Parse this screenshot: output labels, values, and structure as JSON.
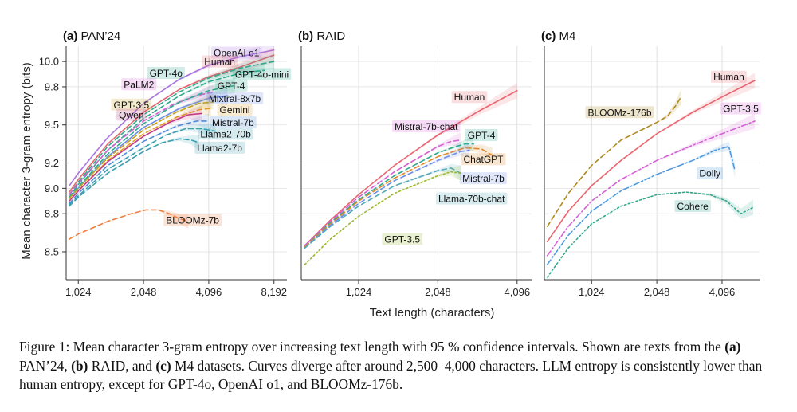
{
  "figure": {
    "ylabel": "Mean character 3-gram entropy (bits)",
    "xlabel": "Text length (characters)"
  },
  "chart_data": [
    {
      "type": "line",
      "panel_label": "(a)",
      "title": "PAN’24",
      "x_scale": "log2",
      "xlim": [
        900,
        9400
      ],
      "ylim": [
        8.28,
        10.12
      ],
      "x_ticks": [
        1024,
        2048,
        4096,
        8192
      ],
      "x_tick_labels": [
        "1,024",
        "2,048",
        "4,096",
        "8,192"
      ],
      "y_ticks": [
        8.5,
        8.8,
        9.0,
        9.2,
        9.5,
        9.8,
        10.0
      ],
      "y_tick_labels": [
        "8.5",
        "8.8",
        "9.0",
        "9.2",
        "9.5",
        "9.8",
        "10.0"
      ],
      "series": [
        {
          "name": "OpenAI  o1",
          "color": "#a974e0",
          "dash": "solid",
          "x": [
            930,
            1024,
            1400,
            2048,
            3000,
            4096,
            5800,
            8192
          ],
          "y": [
            9.02,
            9.12,
            9.4,
            9.67,
            9.86,
            9.97,
            10.04,
            10.09
          ],
          "label_x": 5500,
          "label_y": 10.07
        },
        {
          "name": "Human",
          "color": "#e8656f",
          "dash": "solid",
          "x": [
            930,
            1024,
            1400,
            2048,
            3000,
            4096,
            5800,
            8192
          ],
          "y": [
            8.97,
            9.07,
            9.35,
            9.6,
            9.78,
            9.88,
            9.96,
            10.05
          ],
          "label_x": 4600,
          "label_y": 10.0
        },
        {
          "name": "GPT-4o",
          "color": "#2fa98c",
          "dash": "dash",
          "x": [
            930,
            1024,
            1400,
            2048,
            3000,
            4096,
            5800,
            8192
          ],
          "y": [
            8.95,
            9.05,
            9.33,
            9.58,
            9.76,
            9.87,
            9.95,
            10.0
          ],
          "label_x": 2600,
          "label_y": 9.91
        },
        {
          "name": "GPT-4o-mini",
          "color": "#2fa98c",
          "dash": "dash",
          "x": [
            930,
            1024,
            1400,
            2048,
            3000,
            4096,
            5800,
            7400
          ],
          "y": [
            8.93,
            9.03,
            9.3,
            9.55,
            9.73,
            9.84,
            9.91,
            9.93
          ],
          "label_x": 7200,
          "label_y": 9.9
        },
        {
          "name": "PaLM2",
          "color": "#d55fd6",
          "dash": "dash",
          "x": [
            930,
            1024,
            1400,
            2048,
            2800,
            3600,
            4300
          ],
          "y": [
            8.95,
            9.04,
            9.3,
            9.53,
            9.66,
            9.73,
            9.76
          ],
          "label_x": 1950,
          "label_y": 9.82
        },
        {
          "name": "GPT-4",
          "color": "#2fa98c",
          "dash": "dash",
          "x": [
            930,
            1024,
            1400,
            2048,
            3000,
            4096,
            5400
          ],
          "y": [
            8.92,
            9.01,
            9.27,
            9.51,
            9.68,
            9.77,
            9.81
          ],
          "label_x": 5200,
          "label_y": 9.81
        },
        {
          "name": "Mixtral-8x7b",
          "color": "#6c8ee8",
          "dash": "solid",
          "x": [
            930,
            1024,
            1400,
            2048,
            3000,
            4096,
            5000
          ],
          "y": [
            8.92,
            9.0,
            9.25,
            9.48,
            9.63,
            9.71,
            9.73
          ],
          "label_x": 5400,
          "label_y": 9.71
        },
        {
          "name": "GPT-3.5",
          "color": "#c4a21a",
          "dash": "dash",
          "x": [
            930,
            1024,
            1400,
            2048,
            2900,
            3700,
            4300
          ],
          "y": [
            8.92,
            9.0,
            9.24,
            9.46,
            9.6,
            9.67,
            9.68
          ],
          "label_x": 1800,
          "label_y": 9.66
        },
        {
          "name": "Gemini",
          "color": "#e0a020",
          "dash": "dash",
          "x": [
            930,
            1024,
            1400,
            2048,
            2900,
            3700,
            4200
          ],
          "y": [
            8.9,
            8.98,
            9.22,
            9.43,
            9.56,
            9.62,
            9.63
          ],
          "label_x": 5400,
          "label_y": 9.62
        },
        {
          "name": "Qwen",
          "color": "#c13b86",
          "dash": "solid",
          "x": [
            930,
            1024,
            1400,
            2048,
            2700,
            3300,
            3800
          ],
          "y": [
            8.9,
            8.98,
            9.21,
            9.41,
            9.52,
            9.58,
            9.59
          ],
          "label_x": 1800,
          "label_y": 9.58
        },
        {
          "name": "Mistral-7b",
          "color": "#4e8bd6",
          "dash": "dash",
          "x": [
            930,
            1024,
            1400,
            2048,
            2900,
            3600,
            4100
          ],
          "y": [
            8.88,
            8.96,
            9.18,
            9.37,
            9.49,
            9.53,
            9.53
          ],
          "label_x": 5300,
          "label_y": 9.52
        },
        {
          "name": "Llama2-70b",
          "color": "#3b9fb0",
          "dash": "dash",
          "x": [
            930,
            1024,
            1400,
            2048,
            2600,
            3200,
            3800,
            4400
          ],
          "y": [
            8.87,
            8.94,
            9.15,
            9.32,
            9.42,
            9.47,
            9.47,
            9.45
          ],
          "label_x": 4900,
          "label_y": 9.43
        },
        {
          "name": "Llama2-7b",
          "color": "#3b9fb0",
          "dash": "dash",
          "x": [
            930,
            1024,
            1400,
            2048,
            2500,
            3000,
            3400,
            3700
          ],
          "y": [
            8.86,
            8.93,
            9.12,
            9.29,
            9.36,
            9.39,
            9.38,
            9.36
          ],
          "label_x": 4600,
          "label_y": 9.32
        },
        {
          "name": "BLOOMz-7b",
          "color": "#ef7f3e",
          "dash": "dash",
          "x": [
            930,
            1024,
            1400,
            1800,
            2100,
            2400,
            2700,
            3000,
            3300
          ],
          "y": [
            8.6,
            8.64,
            8.74,
            8.8,
            8.83,
            8.83,
            8.8,
            8.76,
            8.74
          ],
          "label_x": 3450,
          "label_y": 8.75
        }
      ]
    },
    {
      "type": "line",
      "panel_label": "(b)",
      "title": "RAID",
      "x_scale": "log2",
      "xlim": [
        620,
        4650
      ],
      "ylim": [
        8.28,
        10.12
      ],
      "x_ticks": [
        1024,
        2048,
        4096
      ],
      "x_tick_labels": [
        "1,024",
        "2,048",
        "4,096"
      ],
      "y_ticks": [
        8.5,
        8.8,
        9.0,
        9.2,
        9.5,
        9.8,
        10.0
      ],
      "y_tick_labels": [],
      "series": [
        {
          "name": "Human",
          "color": "#e8656f",
          "dash": "solid",
          "x": [
            640,
            800,
            1024,
            1400,
            2048,
            3000,
            4096
          ],
          "y": [
            8.55,
            8.75,
            8.95,
            9.18,
            9.42,
            9.62,
            9.77
          ],
          "label_x": 2700,
          "label_y": 9.72
        },
        {
          "name": "Mistral-7b-chat",
          "color": "#d55fd6",
          "dash": "dash",
          "x": [
            640,
            800,
            1024,
            1400,
            2048,
            2300,
            2500
          ],
          "y": [
            8.55,
            8.74,
            8.93,
            9.13,
            9.33,
            9.37,
            9.38
          ],
          "label_x": 1850,
          "label_y": 9.49
        },
        {
          "name": "GPT-4",
          "color": "#2fa98c",
          "dash": "dash",
          "x": [
            640,
            800,
            1024,
            1400,
            2048,
            2400,
            2600,
            2800
          ],
          "y": [
            8.54,
            8.73,
            8.91,
            9.1,
            9.28,
            9.33,
            9.35,
            9.35
          ],
          "label_x": 3000,
          "label_y": 9.42
        },
        {
          "name": "ChatGPT",
          "color": "#e0882a",
          "dash": "dash",
          "x": [
            640,
            800,
            1024,
            1400,
            2048,
            2600,
            3000,
            3300
          ],
          "y": [
            8.54,
            8.72,
            8.9,
            9.08,
            9.25,
            9.32,
            9.31,
            9.26
          ],
          "label_x": 3050,
          "label_y": 9.23
        },
        {
          "name": "Mistral-7b",
          "color": "#6c8ee8",
          "dash": "dash",
          "x": [
            640,
            800,
            1024,
            1400,
            2048,
            2500,
            2700
          ],
          "y": [
            8.53,
            8.71,
            8.88,
            9.06,
            9.22,
            9.29,
            9.3
          ],
          "label_x": 3050,
          "label_y": 9.08
        },
        {
          "name": "Llama-70b-chat",
          "color": "#4fa9b8",
          "dash": "dash",
          "x": [
            640,
            800,
            1024,
            1400,
            2048,
            2300,
            2500
          ],
          "y": [
            8.53,
            8.7,
            8.86,
            9.02,
            9.14,
            9.16,
            9.12
          ],
          "label_x": 2750,
          "label_y": 8.92
        },
        {
          "name": "GPT-3.5",
          "color": "#9bb82e",
          "dash": "dot",
          "x": [
            640,
            800,
            1024,
            1400,
            2048,
            2300,
            2500
          ],
          "y": [
            8.4,
            8.6,
            8.78,
            8.96,
            9.1,
            9.13,
            9.12
          ],
          "label_x": 1500,
          "label_y": 8.6
        }
      ]
    },
    {
      "type": "line",
      "panel_label": "(c)",
      "title": "M4",
      "x_scale": "log2",
      "xlim": [
        620,
        6100
      ],
      "ylim": [
        8.28,
        10.12
      ],
      "x_ticks": [
        1024,
        2048,
        4096
      ],
      "x_tick_labels": [
        "1,024",
        "2,048",
        "4,096"
      ],
      "y_ticks": [
        8.5,
        8.8,
        9.0,
        9.2,
        9.5,
        9.8,
        10.0
      ],
      "y_tick_labels": [],
      "series": [
        {
          "name": "Human",
          "color": "#e8656f",
          "dash": "solid",
          "x": [
            640,
            800,
            1024,
            1400,
            2048,
            3000,
            4096,
            5800
          ],
          "y": [
            8.58,
            8.82,
            9.02,
            9.22,
            9.43,
            9.6,
            9.72,
            9.85
          ],
          "label_x": 4400,
          "label_y": 9.88
        },
        {
          "name": "BLOOMz-176b",
          "color": "#b08a1c",
          "dash": "dash",
          "x": [
            640,
            800,
            1024,
            1400,
            2048,
            2300,
            2500,
            2650
          ],
          "y": [
            8.7,
            8.96,
            9.18,
            9.38,
            9.52,
            9.57,
            9.65,
            9.72
          ],
          "label_x": 1380,
          "label_y": 9.6
        },
        {
          "name": "GPT-3.5",
          "color": "#d55fd6",
          "dash": "dashdot",
          "x": [
            640,
            800,
            1024,
            1400,
            2048,
            3000,
            4096,
            5800
          ],
          "y": [
            8.47,
            8.7,
            8.9,
            9.07,
            9.22,
            9.34,
            9.43,
            9.53
          ],
          "label_x": 5000,
          "label_y": 9.63
        },
        {
          "name": "Dolly",
          "color": "#4e9ae0",
          "dash": "dashdot",
          "x": [
            640,
            800,
            1024,
            1400,
            2048,
            3000,
            3800,
            4400,
            4700
          ],
          "y": [
            8.4,
            8.63,
            8.82,
            8.98,
            9.11,
            9.22,
            9.3,
            9.33,
            9.14
          ],
          "label_x": 3600,
          "label_y": 9.12
        },
        {
          "name": "Cohere",
          "color": "#2fa98c",
          "dash": "dot",
          "x": [
            640,
            800,
            1024,
            1400,
            2048,
            2800,
            3600,
            4300,
            5000,
            5700
          ],
          "y": [
            8.3,
            8.53,
            8.72,
            8.86,
            8.95,
            8.97,
            8.95,
            8.9,
            8.8,
            8.85
          ],
          "label_x": 3000,
          "label_y": 8.86
        }
      ]
    }
  ],
  "caption": {
    "fig_label": "Figure 1:",
    "t1": " Mean character 3-gram entropy over increasing text length with 95 % confidence intervals. Shown are texts from the ",
    "a": "(a)",
    "t2": " PAN’24, ",
    "b": "(b)",
    "t3": " RAID, and ",
    "c": "(c)",
    "t4": " M4 datasets. Curves diverge after around 2,500–4,000 characters. LLM entropy is consistently lower than human entropy, except for GPT-4o, OpenAI o1, and BLOOMz-176b."
  }
}
